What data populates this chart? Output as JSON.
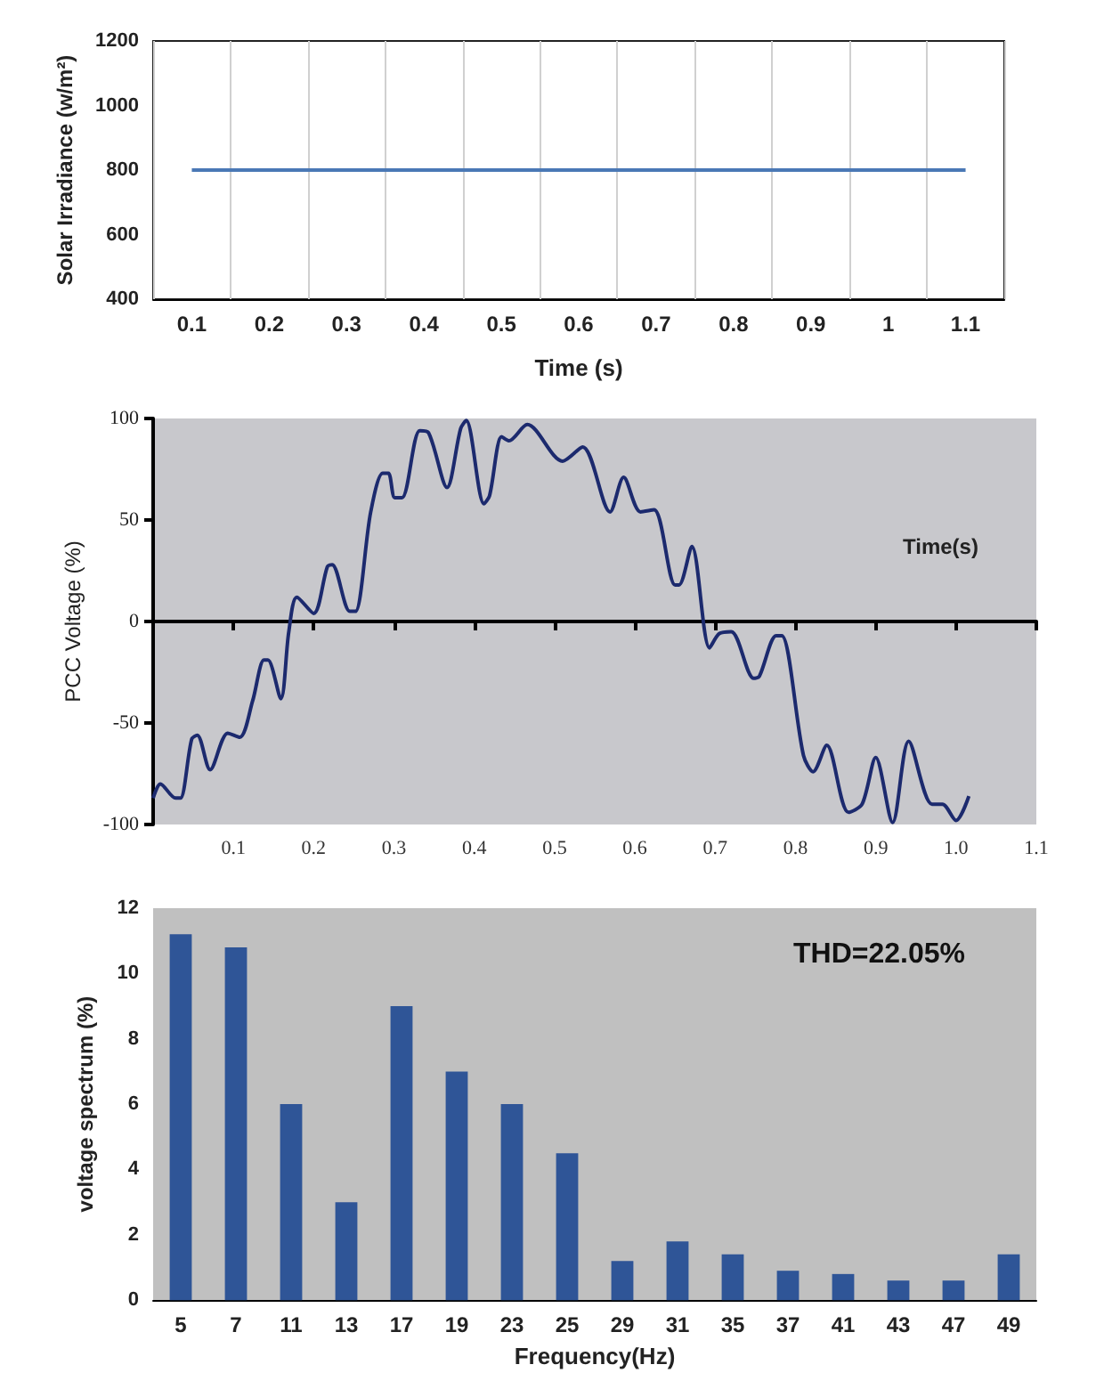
{
  "chart_data": [
    {
      "type": "line",
      "xlabel": "Time (s)",
      "ylabel": "Solar Irradiance (w/m²)",
      "categories": [
        "0.1",
        "0.2",
        "0.3",
        "0.4",
        "0.5",
        "0.6",
        "0.7",
        "0.8",
        "0.9",
        "1",
        "1.1"
      ],
      "series": [
        {
          "color": "#4a78b5",
          "values": [
            800,
            800,
            800,
            800,
            800,
            800,
            800,
            800,
            800,
            800,
            800
          ]
        }
      ],
      "ylim": [
        400,
        1200
      ],
      "yticks": [
        400,
        600,
        800,
        1000,
        1200
      ],
      "grid": "x"
    },
    {
      "type": "line",
      "xlabel": "Time(s)",
      "ylabel": "PCC Voltage (%)",
      "xlim": [
        0,
        1.1
      ],
      "xticks": [
        0.1,
        0.2,
        0.3,
        0.4,
        0.5,
        0.6,
        0.7,
        0.8,
        0.9,
        {
          "value": 1.0,
          "label": "1.0"
        },
        1.1
      ],
      "ylim": [
        -100,
        100
      ],
      "yticks": [
        -100,
        -50,
        0,
        50,
        100
      ],
      "series": [
        {
          "color": "#1c2a6e",
          "x": [
            0.0,
            0.009,
            0.028,
            0.034,
            0.048,
            0.055,
            0.071,
            0.093,
            0.108,
            0.124,
            0.138,
            0.143,
            0.159,
            0.169,
            0.179,
            0.2,
            0.217,
            0.223,
            0.245,
            0.252,
            0.271,
            0.286,
            0.293,
            0.301,
            0.31,
            0.332,
            0.343,
            0.366,
            0.383,
            0.39,
            0.412,
            0.419,
            0.434,
            0.443,
            0.466,
            0.51,
            0.535,
            0.569,
            0.586,
            0.607,
            0.624,
            0.65,
            0.655,
            0.671,
            0.693,
            0.705,
            0.72,
            0.748,
            0.755,
            0.776,
            0.783,
            0.81,
            0.822,
            0.839,
            0.866,
            0.883,
            0.9,
            0.921,
            0.941,
            0.97,
            0.983,
            1.0,
            1.016
          ],
          "values": [
            -87,
            -80,
            -87,
            -87,
            -58,
            -56,
            -73,
            -55,
            -57,
            -39,
            -19,
            -19,
            -38,
            -5,
            12,
            4,
            27,
            28,
            5,
            5,
            54,
            73,
            73,
            61,
            61,
            94,
            93,
            66,
            95,
            99,
            58,
            62,
            91,
            89,
            97,
            79,
            86,
            54,
            71,
            54,
            55,
            18,
            18,
            37,
            -13,
            -6,
            -5,
            -28,
            -27,
            -7,
            -7,
            -66,
            -74,
            -61,
            -94,
            -90,
            -67,
            -99,
            -59,
            -90,
            -90,
            -98,
            -86
          ]
        }
      ]
    },
    {
      "type": "bar",
      "xlabel": "Frequency(Hz)",
      "ylabel": "voltage spectrum (%)",
      "categories": [
        "5",
        "7",
        "11",
        "13",
        "17",
        "19",
        "23",
        "25",
        "29",
        "31",
        "35",
        "37",
        "41",
        "43",
        "47",
        "49"
      ],
      "series": [
        {
          "color": "#2f5597",
          "values": [
            11.2,
            10.8,
            6,
            3,
            9,
            7,
            6,
            4.5,
            1.2,
            1.8,
            1.4,
            0.9,
            0.8,
            0.6,
            0.6,
            1.4
          ]
        }
      ],
      "ylim": [
        0,
        12
      ],
      "yticks": [
        0,
        2,
        4,
        6,
        8,
        10,
        12
      ],
      "annotations": [
        "THD=22.05%"
      ]
    }
  ]
}
